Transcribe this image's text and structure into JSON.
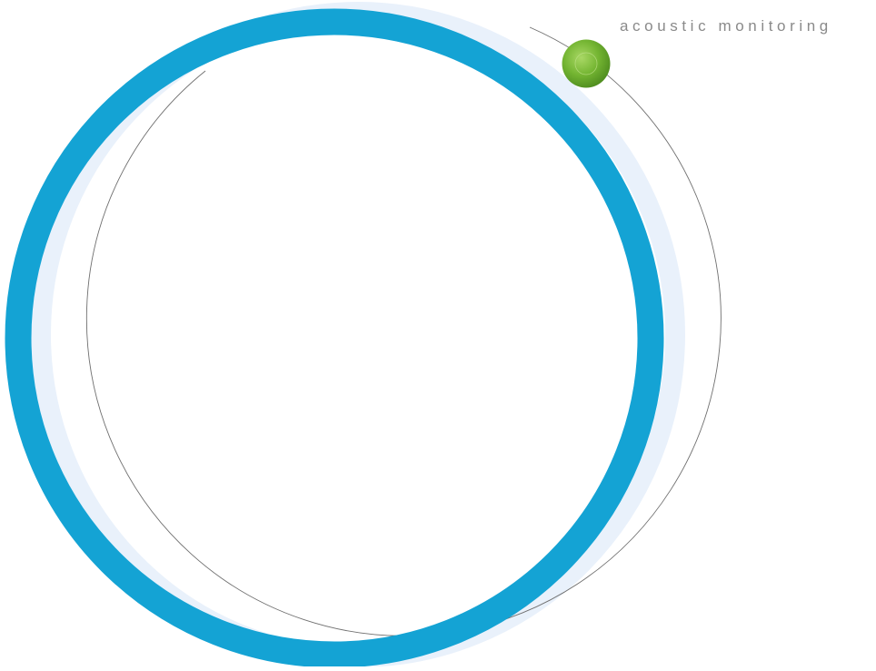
{
  "tagline": "acoustic monitoring",
  "colors": {
    "ring_primary": "#14a3d4",
    "ring_shadow": "#e9f1fb",
    "orbit_line": "#6f6f6f",
    "node_green": "#6aab2e",
    "node_green_light": "#9ed05a",
    "tagline_text": "#8a8a8a",
    "background": "#ffffff"
  },
  "icons": {
    "main_ring": "ring-icon",
    "orbit_node": "green-dot-icon"
  }
}
